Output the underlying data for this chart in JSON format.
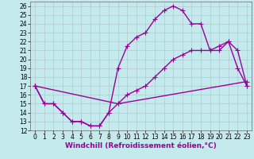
{
  "xlabel": "Windchill (Refroidissement éolien,°C)",
  "background_color": "#c5eaee",
  "line_color": "#990099",
  "xlim": [
    -0.5,
    23.5
  ],
  "ylim": [
    12,
    26.5
  ],
  "xticks": [
    0,
    1,
    2,
    3,
    4,
    5,
    6,
    7,
    8,
    9,
    10,
    11,
    12,
    13,
    14,
    15,
    16,
    17,
    18,
    19,
    20,
    21,
    22,
    23
  ],
  "yticks": [
    12,
    13,
    14,
    15,
    16,
    17,
    18,
    19,
    20,
    21,
    22,
    23,
    24,
    25,
    26
  ],
  "line1_x": [
    0,
    1,
    2,
    3,
    4,
    5,
    6,
    7,
    8,
    9,
    10,
    11,
    12,
    13,
    14,
    15,
    16,
    17,
    18,
    19,
    20,
    21,
    22,
    23
  ],
  "line1_y": [
    17,
    15,
    15,
    14,
    13,
    13,
    12.5,
    12.5,
    14,
    19,
    21.5,
    22.5,
    23,
    24.5,
    25.5,
    26,
    25.5,
    24,
    24,
    21,
    21,
    22,
    19,
    17
  ],
  "line2_x": [
    0,
    1,
    2,
    3,
    4,
    5,
    6,
    7,
    8,
    9,
    10,
    11,
    12,
    13,
    14,
    15,
    16,
    17,
    18,
    19,
    20,
    21,
    22,
    23
  ],
  "line2_y": [
    17,
    15,
    15,
    14,
    13,
    13,
    12.5,
    12.5,
    14,
    15,
    16,
    16.5,
    17,
    18,
    19,
    20,
    20.5,
    21,
    21,
    21,
    21.5,
    22,
    21,
    17
  ],
  "line3_x": [
    0,
    9,
    23
  ],
  "line3_y": [
    17,
    15,
    17.5
  ],
  "marker": "+",
  "markersize": 4,
  "linewidth": 1.0,
  "grid_color": "#b0c8cc",
  "tick_fontsize": 5.5,
  "xlabel_fontsize": 6.5
}
